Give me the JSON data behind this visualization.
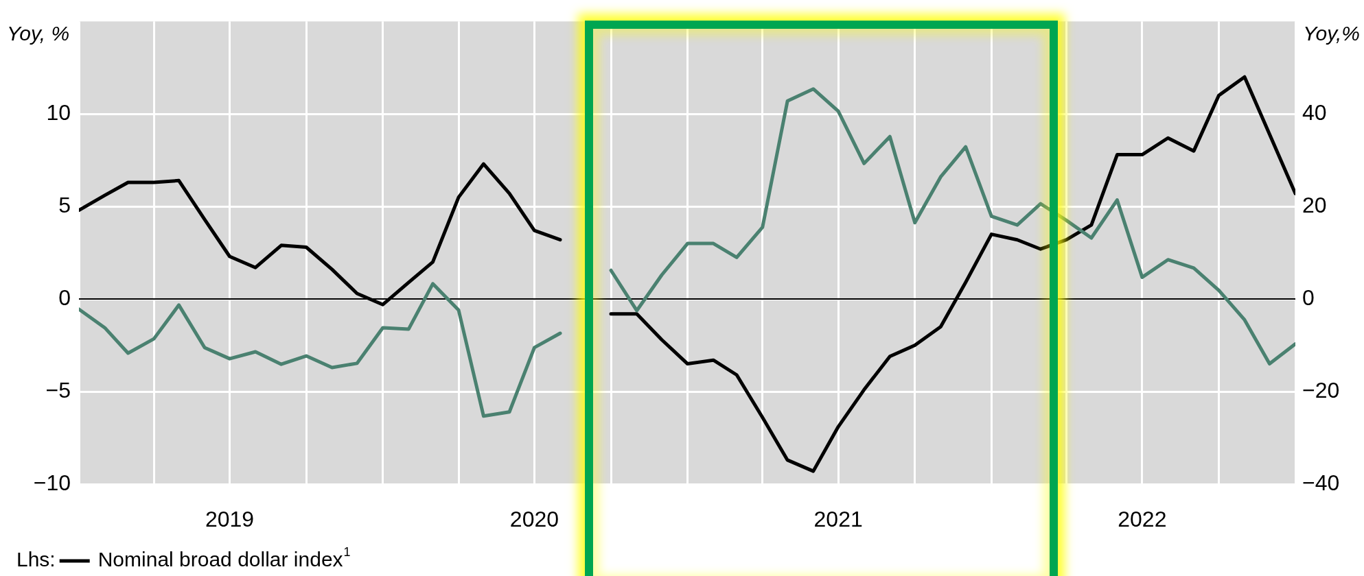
{
  "chart_data": {
    "type": "line",
    "ylabel": "Yoy, %",
    "y2label": "Yoy,%",
    "x": [
      "2019-01",
      "2019-02",
      "2019-03",
      "2019-04",
      "2019-05",
      "2019-06",
      "2019-07",
      "2019-08",
      "2019-09",
      "2019-10",
      "2019-11",
      "2019-12",
      "2020-01",
      "2020-02",
      "2020-03",
      "2020-04",
      "2020-05",
      "2020-06",
      "2020-07",
      "2020-08",
      "2020-09",
      "2020-10",
      "2020-11",
      "2020-12",
      "2021-01",
      "2021-02",
      "2021-03",
      "2021-04",
      "2021-05",
      "2021-06",
      "2021-07",
      "2021-08",
      "2021-09",
      "2021-10",
      "2021-11",
      "2021-12",
      "2022-01",
      "2022-02",
      "2022-03",
      "2022-04",
      "2022-05",
      "2022-06",
      "2022-07",
      "2022-08",
      "2022-09",
      "2022-10",
      "2022-11",
      "2022-12",
      "2023-01"
    ],
    "series": [
      {
        "name": "Nominal broad dollar index$^{1}$",
        "color": "#000000",
        "values": [
          4.8,
          5.6,
          6.3,
          6.3,
          6.4,
          4.3,
          2.3,
          1.7,
          2.9,
          2.8,
          1.6,
          0.3,
          -0.3,
          0.9,
          2.0,
          5.5,
          7.3,
          5.7,
          3.7,
          3.2,
          null,
          -0.8,
          -0.8,
          -2.2,
          -3.5,
          -3.3,
          -4.1,
          -6.4,
          -8.7,
          -9.3,
          -6.9,
          -4.9,
          -3.1,
          -2.5,
          -1.5,
          0.9,
          3.5,
          3.2,
          2.7,
          3.2,
          4.0,
          7.8,
          7.8,
          8.7,
          8.0,
          11.0,
          12.0,
          8.9,
          5.7
        ]
      },
      {
        "color": "#4a8170",
        "axis": "y2",
        "values": [
          -2.2,
          -6.2,
          -11.7,
          -8.6,
          -1.3,
          -10.5,
          -12.9,
          -11.4,
          -14.1,
          -12.3,
          -14.8,
          -13.9,
          -6.2,
          -6.5,
          3.3,
          -2.4,
          -25.3,
          -24.4,
          -10.5,
          -7.4,
          null,
          6.2,
          -2.5,
          5.2,
          12.0,
          12.0,
          9.0,
          15.5,
          42.8,
          45.4,
          40.6,
          29.3,
          35.1,
          16.5,
          26.4,
          32.9,
          17.9,
          16.0,
          20.6,
          17,
          13.2,
          21.4,
          4.7,
          8.5,
          6.7,
          1.9,
          -4.5,
          -14.0,
          -9.7
        ]
      }
    ],
    "xlim": [
      "2019-01",
      "2023-01"
    ],
    "xticks": [
      {
        "value": "2019-01",
        "label": null
      },
      {
        "value": "2019-04",
        "label": null
      },
      {
        "value": "2019-07",
        "label": "2019"
      },
      {
        "value": "2019-10",
        "label": null
      },
      {
        "value": "2020-01",
        "label": null
      },
      {
        "value": "2020-04",
        "label": null
      },
      {
        "value": "2020-07",
        "label": "2020"
      },
      {
        "value": "2020-10",
        "label": null
      },
      {
        "value": "2021-01",
        "label": null
      },
      {
        "value": "2021-04",
        "label": null
      },
      {
        "value": "2021-07",
        "label": "2021"
      },
      {
        "value": "2021-10",
        "label": null
      },
      {
        "value": "2022-01",
        "label": null
      },
      {
        "value": "2022-04",
        "label": null
      },
      {
        "value": "2022-07",
        "label": "2022"
      },
      {
        "value": "2022-10",
        "label": null
      },
      {
        "value": "2023-01",
        "label": null
      }
    ],
    "ylim": [
      -10,
      15
    ],
    "yticks": [
      -10,
      -5,
      0,
      5,
      10
    ],
    "y2lim": [
      -40,
      60
    ],
    "y2ticks": [
      -40,
      -20,
      0,
      20,
      40
    ],
    "ref_lines": [
      {
        "axis": "y",
        "value": 0,
        "color": "#000000"
      }
    ],
    "legend_title": "Lhs:",
    "grid": true,
    "legend": "bottom left",
    "marker": "none",
    "line_style": "solid"
  }
}
